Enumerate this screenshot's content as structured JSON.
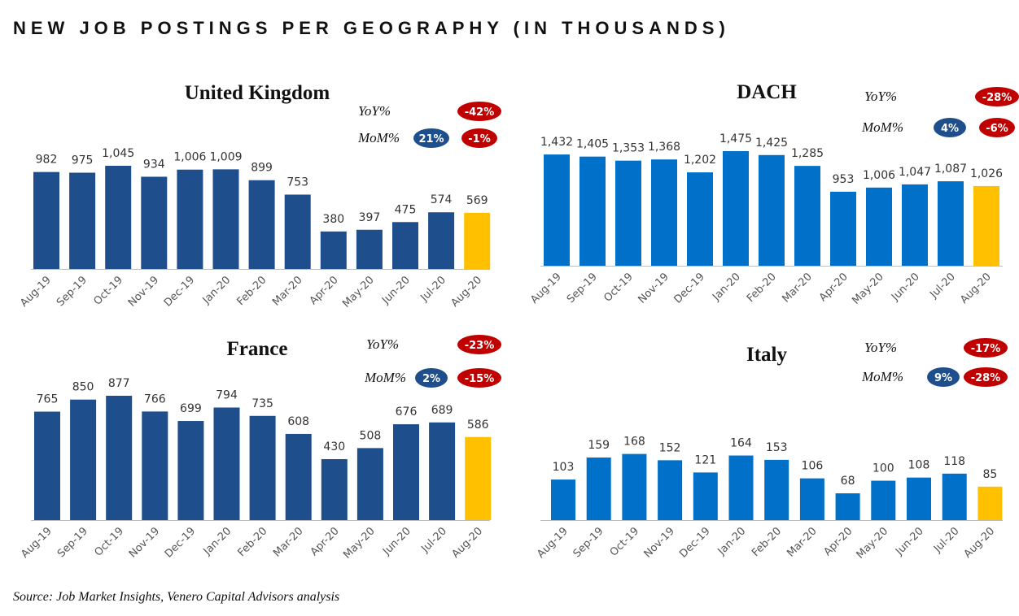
{
  "page_title": "NEW JOB POSTINGS PER GEOGRAPHY (IN THOUSANDS)",
  "source": "Source: Job Market Insights, Venero Capital Advisors analysis",
  "colors": {
    "uk_france_bar": "#1f4e8c",
    "dach_italy_bar": "#0070c8",
    "highlight_bar": "#ffc000",
    "positive_badge": "#1f4e8c",
    "negative_badge": "#c00000"
  },
  "labels": {
    "yoy": "YoY%",
    "mom": "MoM%"
  },
  "chart_data": [
    {
      "type": "bar",
      "title": "United Kingdom",
      "categories": [
        "Aug-19",
        "Sep-19",
        "Oct-19",
        "Nov-19",
        "Dec-19",
        "Jan-20",
        "Feb-20",
        "Mar-20",
        "Apr-20",
        "May-20",
        "Jun-20",
        "Jul-20",
        "Aug-20"
      ],
      "values": [
        982,
        975,
        1045,
        934,
        1006,
        1009,
        899,
        753,
        380,
        397,
        475,
        574,
        569
      ],
      "value_labels": [
        "982",
        "975",
        "1,045",
        "934",
        "1,006",
        "1,009",
        "899",
        "753",
        "380",
        "397",
        "475",
        "574",
        "569"
      ],
      "highlight_index": 12,
      "ylim": [
        0,
        1100
      ],
      "grid": false,
      "yoy": "-42%",
      "mom_prior": "21%",
      "mom": "-1%"
    },
    {
      "type": "bar",
      "title": "DACH",
      "categories": [
        "Aug-19",
        "Sep-19",
        "Oct-19",
        "Nov-19",
        "Dec-19",
        "Jan-20",
        "Feb-20",
        "Mar-20",
        "Apr-20",
        "May-20",
        "Jun-20",
        "Jul-20",
        "Aug-20"
      ],
      "values": [
        1432,
        1405,
        1353,
        1368,
        1202,
        1475,
        1425,
        1285,
        953,
        1006,
        1047,
        1087,
        1026
      ],
      "value_labels": [
        "1,432",
        "1,405",
        "1,353",
        "1,368",
        "1,202",
        "1,475",
        "1,425",
        "1,285",
        "953",
        "1,006",
        "1,047",
        "1,087",
        "1,026"
      ],
      "highlight_index": 12,
      "ylim": [
        0,
        1500
      ],
      "grid": false,
      "yoy": "-28%",
      "mom_prior": "4%",
      "mom": "-6%"
    },
    {
      "type": "bar",
      "title": "France",
      "categories": [
        "Aug-19",
        "Sep-19",
        "Oct-19",
        "Nov-19",
        "Dec-19",
        "Jan-20",
        "Feb-20",
        "Mar-20",
        "Apr-20",
        "May-20",
        "Jun-20",
        "Jul-20",
        "Aug-20"
      ],
      "values": [
        765,
        850,
        877,
        766,
        699,
        794,
        735,
        608,
        430,
        508,
        676,
        689,
        586
      ],
      "value_labels": [
        "765",
        "850",
        "877",
        "766",
        "699",
        "794",
        "735",
        "608",
        "430",
        "508",
        "676",
        "689",
        "586"
      ],
      "highlight_index": 12,
      "ylim": [
        0,
        1000
      ],
      "grid": false,
      "yoy": "-23%",
      "mom_prior": "2%",
      "mom": "-15%"
    },
    {
      "type": "bar",
      "title": "Italy",
      "categories": [
        "Aug-19",
        "Sep-19",
        "Oct-19",
        "Nov-19",
        "Dec-19",
        "Jan-20",
        "Feb-20",
        "Mar-20",
        "Apr-20",
        "May-20",
        "Jun-20",
        "Jul-20",
        "Aug-20"
      ],
      "values": [
        103,
        159,
        168,
        152,
        121,
        164,
        153,
        106,
        68,
        100,
        108,
        118,
        85
      ],
      "value_labels": [
        "103",
        "159",
        "168",
        "152",
        "121",
        "164",
        "153",
        "106",
        "68",
        "100",
        "108",
        "118",
        "85"
      ],
      "highlight_index": 12,
      "ylim": [
        0,
        320
      ],
      "grid": false,
      "yoy": "-17%",
      "mom_prior": "9%",
      "mom": "-28%"
    }
  ]
}
